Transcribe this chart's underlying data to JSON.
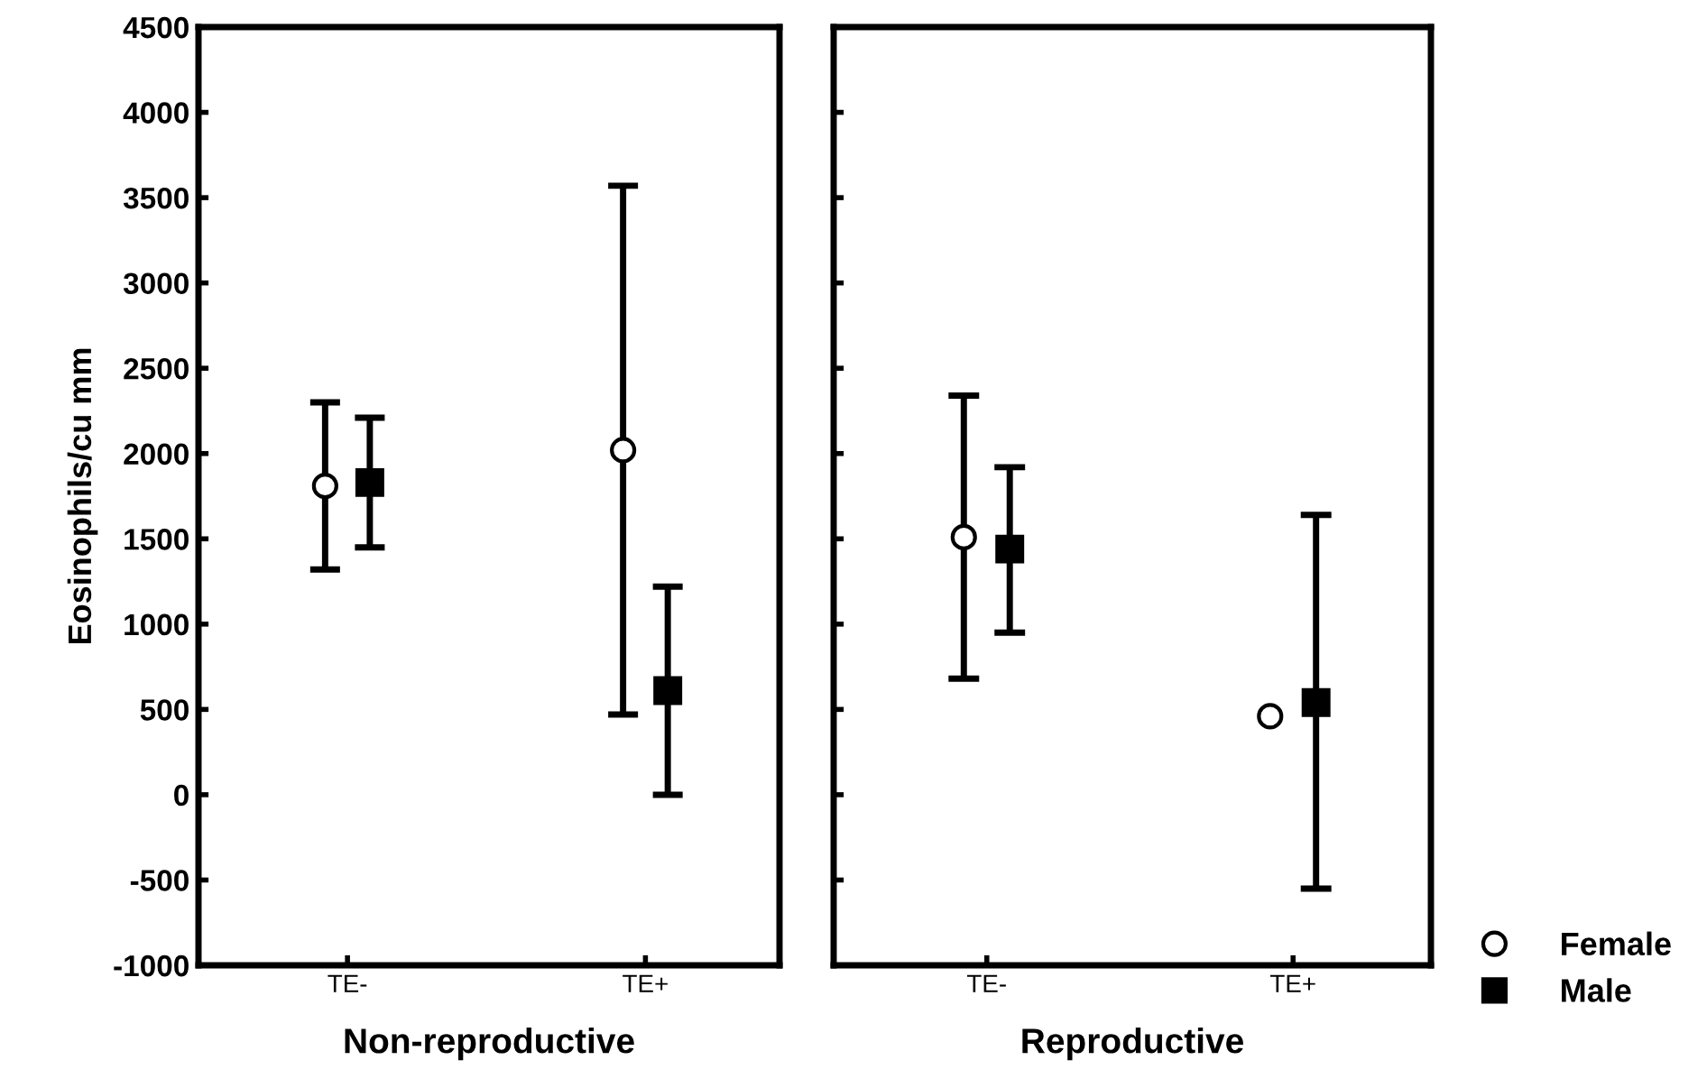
{
  "chart_data": [
    {
      "type": "scatter",
      "xlabel": "Non-reproductive",
      "ylabel": "Eosinophils/cu mm",
      "categories": [
        "TE-",
        "TE+"
      ],
      "ylim": [
        -1000,
        4500
      ],
      "yticks": [
        -1000,
        -500,
        0,
        500,
        1000,
        1500,
        2000,
        2500,
        3000,
        3500,
        4000,
        4500
      ],
      "grid": false,
      "series": [
        {
          "color": "#ffffff",
          "marker": "circle",
          "values": [
            1810,
            2020
          ],
          "errors": [
            [
              1320,
              2300
            ],
            [
              470,
              3570
            ]
          ]
        },
        {
          "color": "#000000",
          "marker": "square",
          "values": [
            1830,
            610
          ],
          "errors": [
            [
              1450,
              2210
            ],
            [
              0,
              1220
            ]
          ]
        }
      ]
    },
    {
      "type": "scatter",
      "xlabel": "Reproductive",
      "categories": [
        "TE-",
        "TE+"
      ],
      "ylim": [
        -1000,
        4500
      ],
      "yticks": [
        -1000,
        -500,
        0,
        500,
        1000,
        1500,
        2000,
        2500,
        3000,
        3500,
        4000,
        4500
      ],
      "tick_labels": "x",
      "grid": false,
      "legend": "bottom right",
      "series": [
        {
          "name": "Female",
          "color": "#ffffff",
          "marker": "circle",
          "values": [
            1510,
            460
          ],
          "errors": [
            [
              680,
              2340
            ],
            null
          ]
        },
        {
          "name": "Male",
          "color": "#000000",
          "marker": "square",
          "values": [
            1440,
            540
          ],
          "errors": [
            [
              950,
              1920
            ],
            [
              -550,
              1640
            ]
          ]
        }
      ]
    }
  ]
}
